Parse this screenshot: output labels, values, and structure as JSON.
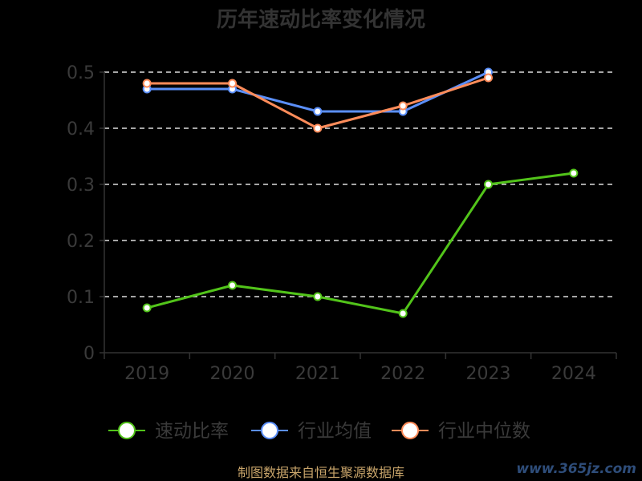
{
  "chart_data": {
    "type": "line",
    "title": "历年速动比率变化情况",
    "categories": [
      "2019",
      "2020",
      "2021",
      "2022",
      "2023",
      "2024"
    ],
    "y_ticks": [
      "0",
      "0.1",
      "0.2",
      "0.3",
      "0.4",
      "0.5"
    ],
    "ylim": [
      0,
      0.5
    ],
    "xlabel": "",
    "ylabel": "",
    "grid": "horizontal dashed",
    "legend_position": "bottom",
    "series": [
      {
        "name": "速动比率",
        "color": "#52c41a",
        "values": [
          0.08,
          0.12,
          0.1,
          0.07,
          0.3,
          0.32
        ]
      },
      {
        "name": "行业均值",
        "color": "#5b8ff9",
        "values": [
          0.47,
          0.47,
          0.43,
          0.43,
          0.5,
          null
        ]
      },
      {
        "name": "行业中位数",
        "color": "#ff8c5a",
        "values": [
          0.48,
          0.48,
          0.4,
          0.44,
          0.49,
          null
        ]
      }
    ]
  },
  "source_note": "制图数据来自恒生聚源数据库",
  "watermark": "www.365jz.com"
}
